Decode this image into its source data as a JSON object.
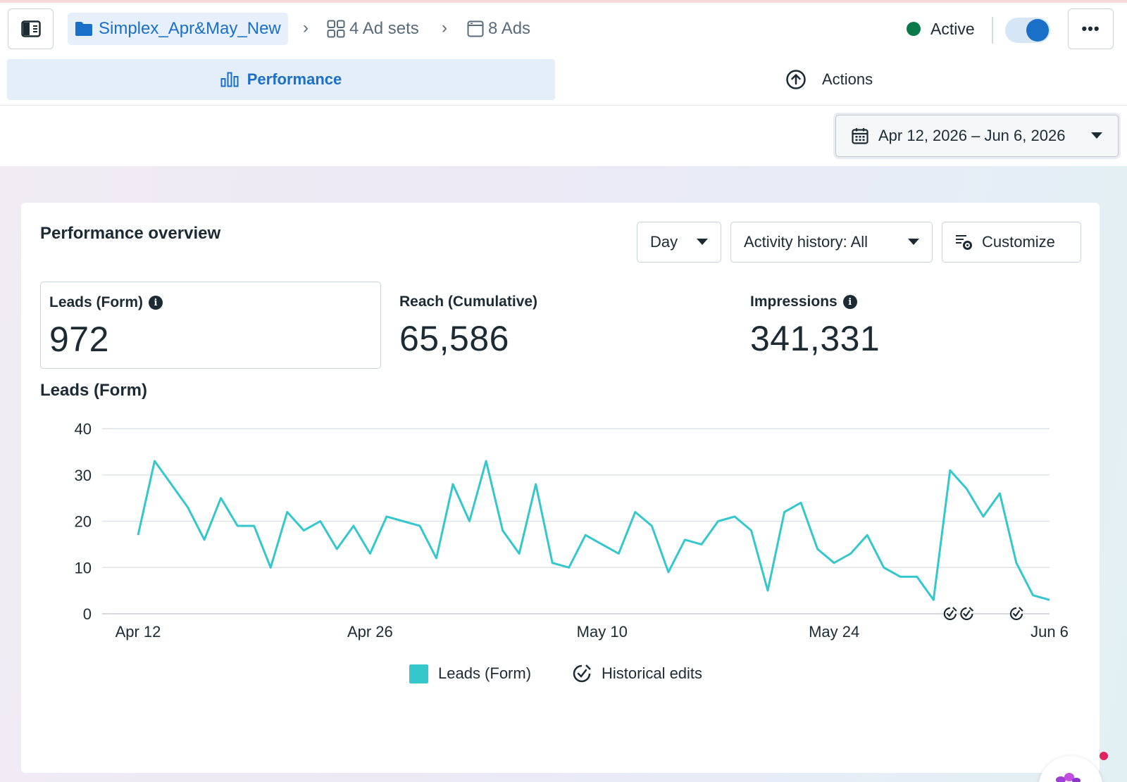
{
  "breadcrumb": {
    "campaign": "Simplex_Apr&May_New",
    "adsets": "4 Ad sets",
    "ads": "8 Ads"
  },
  "status": {
    "label": "Active",
    "toggle_on": true
  },
  "tabs": {
    "performance": "Performance",
    "actions": "Actions"
  },
  "date_range": "Apr 12, 2026 – Jun 6, 2026",
  "overview": {
    "title": "Performance overview",
    "granularity": "Day",
    "activity_history": "Activity history: All",
    "customize": "Customize"
  },
  "metrics": [
    {
      "label": "Leads (Form)",
      "value": "972",
      "has_info": true
    },
    {
      "label": "Reach (Cumulative)",
      "value": "65,586",
      "has_info": false
    },
    {
      "label": "Impressions",
      "value": "341,331",
      "has_info": true
    }
  ],
  "legend": {
    "series": "Leads (Form)",
    "edits": "Historical edits"
  },
  "colors": {
    "accent": "#1a6fc6",
    "series": "#34c7cc",
    "active": "#0b7a4b"
  },
  "chart_data": {
    "type": "line",
    "title": "Leads (Form)",
    "x_tick_labels": [
      "Apr 12",
      "Apr 26",
      "May 10",
      "May 24",
      "Jun 6"
    ],
    "y_ticks": [
      0,
      10,
      20,
      30,
      40
    ],
    "ylim": [
      0,
      40
    ],
    "grid": true,
    "series": [
      {
        "name": "Leads (Form)",
        "values": [
          17,
          33,
          28,
          23,
          16,
          25,
          19,
          19,
          10,
          22,
          18,
          20,
          14,
          19,
          13,
          21,
          20,
          19,
          12,
          28,
          20,
          33,
          18,
          13,
          28,
          11,
          10,
          17,
          15,
          13,
          22,
          19,
          9,
          16,
          15,
          20,
          21,
          18,
          5,
          22,
          24,
          14,
          11,
          13,
          17,
          10,
          8,
          8,
          3,
          31,
          27,
          21,
          26,
          11,
          4,
          3
        ]
      }
    ],
    "historical_edit_days": [
      49,
      50,
      53
    ]
  }
}
